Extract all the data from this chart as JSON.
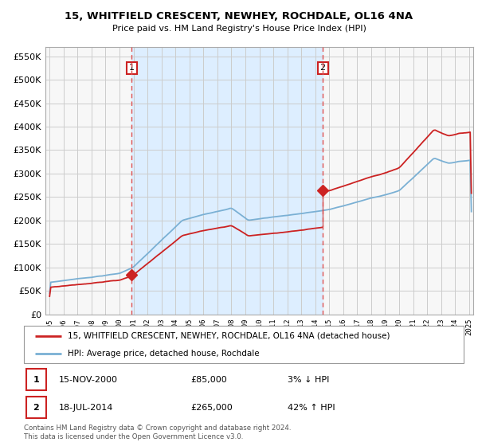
{
  "title": "15, WHITFIELD CRESCENT, NEWHEY, ROCHDALE, OL16 4NA",
  "subtitle": "Price paid vs. HM Land Registry's House Price Index (HPI)",
  "legend_line1": "15, WHITFIELD CRESCENT, NEWHEY, ROCHDALE, OL16 4NA (detached house)",
  "legend_line2": "HPI: Average price, detached house, Rochdale",
  "table_rows": [
    {
      "num": "1",
      "date": "15-NOV-2000",
      "price": "£85,000",
      "hpi": "3% ↓ HPI"
    },
    {
      "num": "2",
      "date": "18-JUL-2014",
      "price": "£265,000",
      "hpi": "42% ↑ HPI"
    }
  ],
  "footer": "Contains HM Land Registry data © Crown copyright and database right 2024.\nThis data is licensed under the Open Government Licence v3.0.",
  "transaction1_year": 2000.88,
  "transaction1_price": 85000,
  "transaction2_year": 2014.54,
  "transaction2_price": 265000,
  "vline1_year": 2000.88,
  "vline2_year": 2014.54,
  "ylim": [
    0,
    570000
  ],
  "xlim_start": 1994.7,
  "xlim_end": 2025.3,
  "yticks": [
    0,
    50000,
    100000,
    150000,
    200000,
    250000,
    300000,
    350000,
    400000,
    450000,
    500000,
    550000
  ],
  "xticks": [
    1995,
    1996,
    1997,
    1998,
    1999,
    2000,
    2001,
    2002,
    2003,
    2004,
    2005,
    2006,
    2007,
    2008,
    2009,
    2010,
    2011,
    2012,
    2013,
    2014,
    2015,
    2016,
    2017,
    2018,
    2019,
    2020,
    2021,
    2022,
    2023,
    2024,
    2025
  ],
  "hpi_color": "#7ab0d4",
  "property_color": "#cc2222",
  "vline_color": "#e05050",
  "shade_color": "#ddeeff",
  "background_color": "#f7f7f7",
  "grid_color": "#cccccc"
}
